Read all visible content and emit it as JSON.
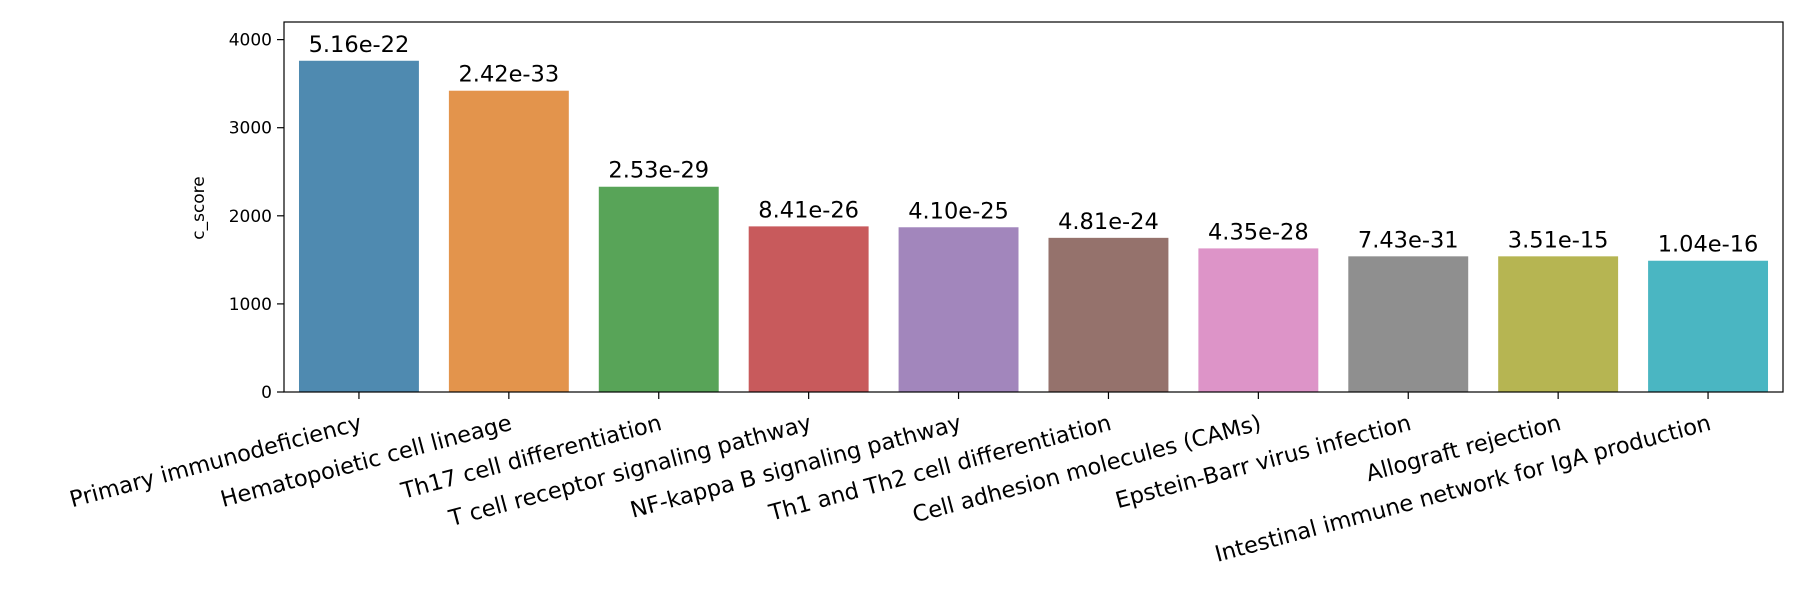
{
  "chart_data": {
    "type": "bar",
    "title": "",
    "xlabel": "",
    "ylabel": "c_score",
    "ylim": [
      0,
      4200
    ],
    "yticks": [
      0,
      1000,
      2000,
      3000,
      4000
    ],
    "grid": false,
    "legend": "none",
    "categories": [
      "Primary immunodeficiency",
      "Hematopoietic cell lineage",
      "Th17 cell differentiation",
      "T cell receptor signaling pathway",
      "NF-kappa B signaling pathway",
      "Th1 and Th2 cell differentiation",
      "Cell adhesion molecules (CAMs)",
      "Epstein-Barr virus infection",
      "Allograft rejection",
      "Intestinal immune network for IgA production"
    ],
    "values": [
      3760,
      3420,
      2330,
      1880,
      1870,
      1750,
      1630,
      1540,
      1540,
      1490
    ],
    "bar_labels": [
      "5.16e-22",
      "2.42e-33",
      "2.53e-29",
      "8.41e-26",
      "4.10e-25",
      "4.81e-24",
      "4.35e-28",
      "7.43e-31",
      "3.51e-15",
      "1.04e-16"
    ],
    "colors": [
      "#4f8ab0",
      "#e3944c",
      "#58a458",
      "#c85a5c",
      "#a286bc",
      "#95726c",
      "#dd94c8",
      "#8f8f8f",
      "#b6b552",
      "#4ab6c2"
    ]
  }
}
